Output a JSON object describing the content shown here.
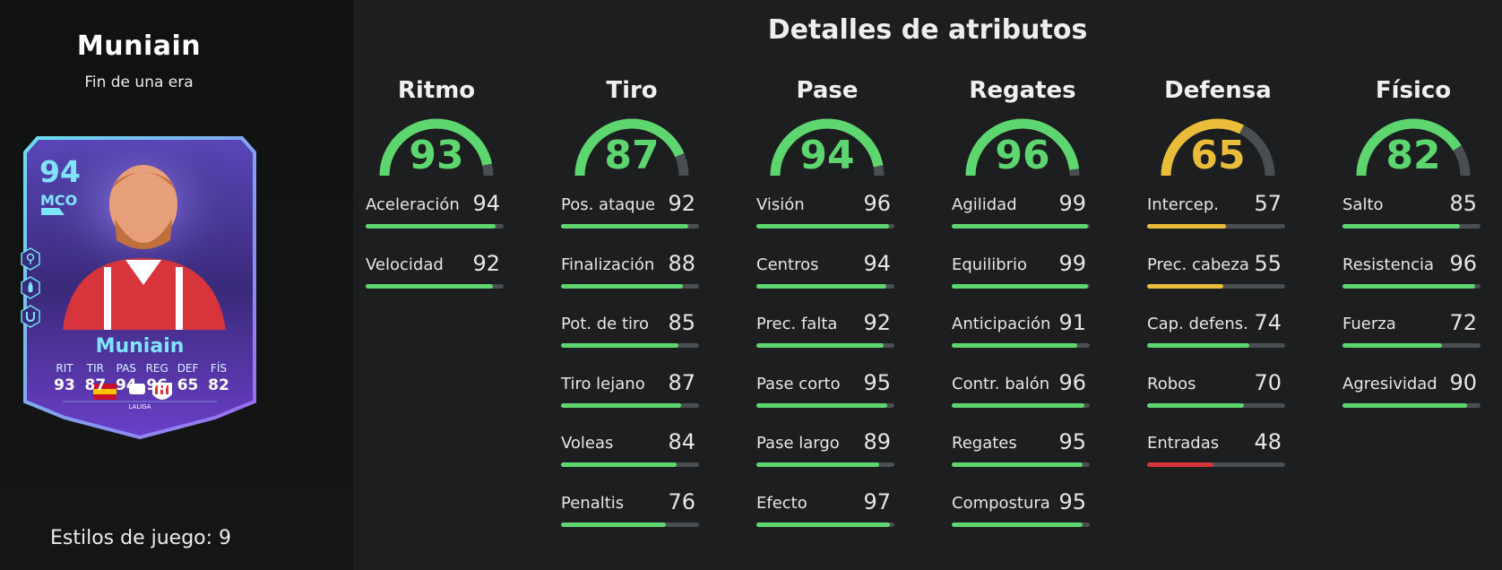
{
  "player": {
    "name": "Muniain",
    "subtitle": "Fin de una era",
    "playstyles_label": "Estilos de juego: 9"
  },
  "card": {
    "overall": "94",
    "position": "MCO",
    "name": "Muniain",
    "stats": [
      {
        "label": "RIT",
        "value": "93"
      },
      {
        "label": "TIR",
        "value": "87"
      },
      {
        "label": "PAS",
        "value": "94"
      },
      {
        "label": "REG",
        "value": "96"
      },
      {
        "label": "DEF",
        "value": "65"
      },
      {
        "label": "FÍS",
        "value": "82"
      }
    ],
    "icons": [
      "location-pin-icon",
      "rocket-icon",
      "magnet-icon"
    ],
    "league_text": "LALIGA",
    "colors": {
      "frame": "#6ae0f0",
      "background": "#3a2a7a",
      "accent": "#7fe4ff"
    }
  },
  "page_title": "Detalles de atributos",
  "colors": {
    "high": "#5ed66f",
    "mid": "#e9bd3a",
    "low": "#d8323a",
    "track": "#4b4e50"
  },
  "categories": [
    {
      "name": "Ritmo",
      "value": 93,
      "attributes": [
        {
          "label": "Aceleración",
          "value": 94
        },
        {
          "label": "Velocidad",
          "value": 92
        }
      ]
    },
    {
      "name": "Tiro",
      "value": 87,
      "attributes": [
        {
          "label": "Pos. ataque",
          "value": 92
        },
        {
          "label": "Finalización",
          "value": 88
        },
        {
          "label": "Pot. de tiro",
          "value": 85
        },
        {
          "label": "Tiro lejano",
          "value": 87
        },
        {
          "label": "Voleas",
          "value": 84
        },
        {
          "label": "Penaltis",
          "value": 76
        }
      ]
    },
    {
      "name": "Pase",
      "value": 94,
      "attributes": [
        {
          "label": "Visión",
          "value": 96
        },
        {
          "label": "Centros",
          "value": 94
        },
        {
          "label": "Prec. falta",
          "value": 92
        },
        {
          "label": "Pase corto",
          "value": 95
        },
        {
          "label": "Pase largo",
          "value": 89
        },
        {
          "label": "Efecto",
          "value": 97
        }
      ]
    },
    {
      "name": "Regates",
      "value": 96,
      "attributes": [
        {
          "label": "Agilidad",
          "value": 99
        },
        {
          "label": "Equilibrio",
          "value": 99
        },
        {
          "label": "Anticipación",
          "value": 91
        },
        {
          "label": "Contr. balón",
          "value": 96
        },
        {
          "label": "Regates",
          "value": 95
        },
        {
          "label": "Compostura",
          "value": 95
        }
      ]
    },
    {
      "name": "Defensa",
      "value": 65,
      "attributes": [
        {
          "label": "Intercep.",
          "value": 57
        },
        {
          "label": "Prec. cabeza",
          "value": 55
        },
        {
          "label": "Cap. defens.",
          "value": 74
        },
        {
          "label": "Robos",
          "value": 70
        },
        {
          "label": "Entradas",
          "value": 48
        }
      ]
    },
    {
      "name": "Físico",
      "value": 82,
      "attributes": [
        {
          "label": "Salto",
          "value": 85
        },
        {
          "label": "Resistencia",
          "value": 96
        },
        {
          "label": "Fuerza",
          "value": 72
        },
        {
          "label": "Agresividad",
          "value": 90
        }
      ]
    }
  ]
}
